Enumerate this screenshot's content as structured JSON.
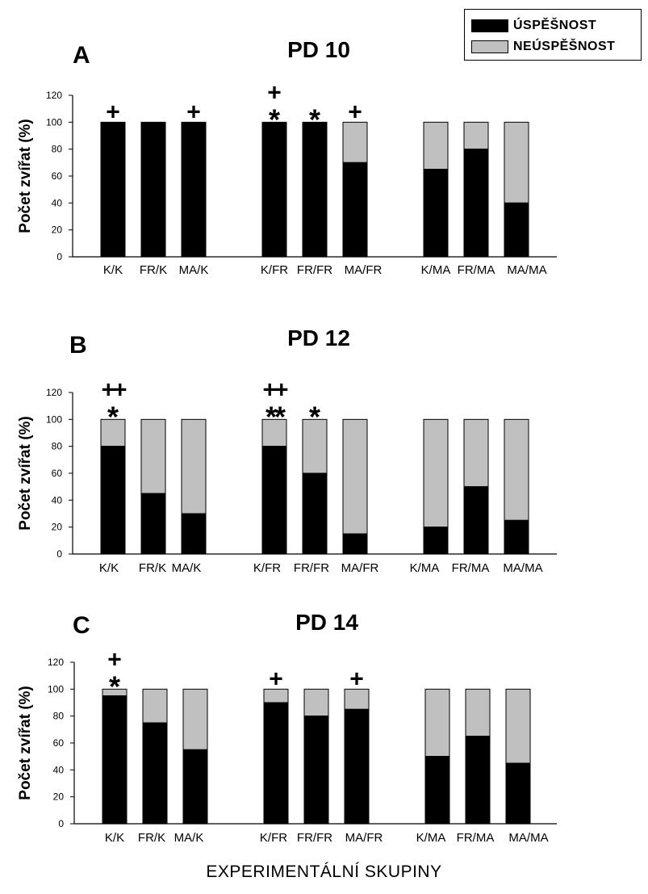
{
  "legend": {
    "items": [
      {
        "label": "ÚSPĚŠNOST",
        "color": "#000000"
      },
      {
        "label": "NEÚSPĚŠNOST",
        "color": "#c0c0c0"
      }
    ]
  },
  "xlabel": "EXPERIMENTÁLNÍ SKUPINY",
  "colors": {
    "success": "#000000",
    "failure": "#c0c0c0"
  },
  "chart_data": [
    {
      "type": "bar",
      "stacked": true,
      "panel": "A",
      "title": "PD 10",
      "ylabel": "Počet zvířat (%)",
      "ylim": [
        0,
        120
      ],
      "yticks": [
        0,
        20,
        40,
        60,
        80,
        100,
        120
      ],
      "categories": [
        "K/K",
        "FR/K",
        "MA/K",
        "K/FR",
        "FR/FR",
        "MA/FR",
        "K/MA",
        "FR/MA",
        "MA/MA"
      ],
      "series": [
        {
          "name": "ÚSPĚŠNOST",
          "values": [
            100,
            100,
            100,
            100,
            100,
            70,
            65,
            80,
            40
          ]
        },
        {
          "name": "NEÚSPĚŠNOST",
          "values": [
            0,
            0,
            0,
            0,
            0,
            30,
            35,
            20,
            60
          ]
        }
      ],
      "annotations": [
        {
          "category": "K/K",
          "lines": [
            "+"
          ]
        },
        {
          "category": "MA/K",
          "lines": [
            "+"
          ]
        },
        {
          "category": "K/FR",
          "lines": [
            "+",
            "*"
          ]
        },
        {
          "category": "FR/FR",
          "lines": [
            "*"
          ]
        },
        {
          "category": "MA/FR",
          "lines": [
            "+"
          ]
        }
      ]
    },
    {
      "type": "bar",
      "stacked": true,
      "panel": "B",
      "title": "PD 12",
      "ylabel": "Počet zvířat (%)",
      "ylim": [
        0,
        120
      ],
      "yticks": [
        0,
        20,
        40,
        60,
        80,
        100,
        120
      ],
      "categories": [
        "K/K",
        "FR/K",
        "MA/K",
        "K/FR",
        "FR/FR",
        "MA/FR",
        "K/MA",
        "FR/MA",
        "MA/MA"
      ],
      "series": [
        {
          "name": "ÚSPĚŠNOST",
          "values": [
            80,
            45,
            30,
            80,
            60,
            15,
            20,
            50,
            25
          ]
        },
        {
          "name": "NEÚSPĚŠNOST",
          "values": [
            20,
            55,
            70,
            20,
            40,
            85,
            80,
            50,
            75
          ]
        }
      ],
      "annotations": [
        {
          "category": "K/K",
          "lines": [
            "++",
            "*"
          ]
        },
        {
          "category": "K/FR",
          "lines": [
            "++",
            "**"
          ]
        },
        {
          "category": "FR/FR",
          "lines": [
            "*"
          ]
        }
      ]
    },
    {
      "type": "bar",
      "stacked": true,
      "panel": "C",
      "title": "PD 14",
      "ylabel": "Počet zvířat (%)",
      "ylim": [
        0,
        120
      ],
      "yticks": [
        0,
        20,
        40,
        60,
        80,
        100,
        120
      ],
      "categories": [
        "K/K",
        "FR/K",
        "MA/K",
        "K/FR",
        "FR/FR",
        "MA/FR",
        "K/MA",
        "FR/MA",
        "MA/MA"
      ],
      "series": [
        {
          "name": "ÚSPĚŠNOST",
          "values": [
            95,
            75,
            55,
            90,
            80,
            85,
            50,
            65,
            45
          ]
        },
        {
          "name": "NEÚSPĚŠNOST",
          "values": [
            5,
            25,
            45,
            10,
            20,
            15,
            50,
            35,
            55
          ]
        }
      ],
      "annotations": [
        {
          "category": "K/K",
          "lines": [
            "+",
            "*"
          ]
        },
        {
          "category": "K/FR",
          "lines": [
            "+"
          ]
        },
        {
          "category": "MA/FR",
          "lines": [
            "+"
          ]
        }
      ]
    }
  ]
}
